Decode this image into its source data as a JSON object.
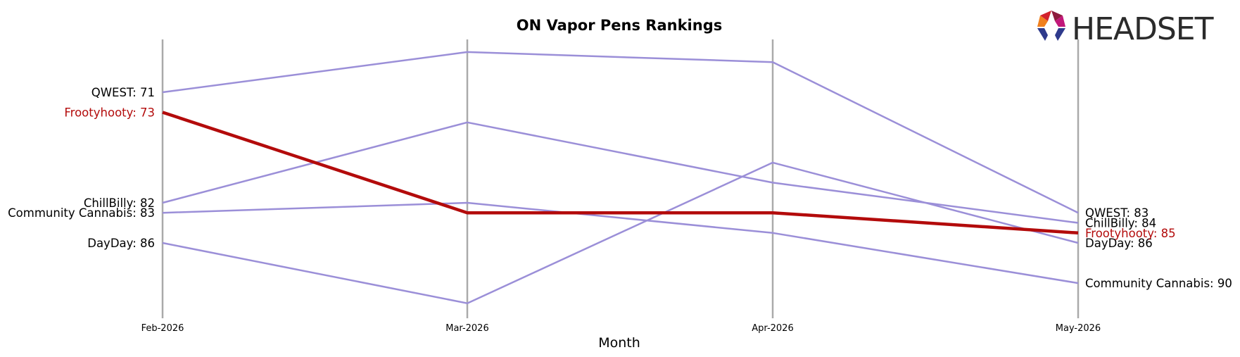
{
  "logo": {
    "text": "HEADSET"
  },
  "chart_data": {
    "type": "line",
    "title": "ON Vapor Pens Rankings",
    "xlabel": "Month",
    "ylabel": "",
    "x": [
      "Feb-2026",
      "Mar-2026",
      "Apr-2026",
      "May-2026"
    ],
    "ylim": [
      95,
      67
    ],
    "y_inverted": true,
    "grid": "vertical lines at each month",
    "series": [
      {
        "name": "QWEST",
        "values": [
          71,
          67,
          68,
          83
        ],
        "color": "#9b8fd8",
        "highlight": false,
        "start_label": "QWEST: 71",
        "end_label": "QWEST: 83"
      },
      {
        "name": "ChillBilly",
        "values": [
          82,
          74,
          80,
          84
        ],
        "color": "#9b8fd8",
        "highlight": false,
        "start_label": "ChillBilly: 82",
        "end_label": "ChillBilly: 84"
      },
      {
        "name": "Community Cannabis",
        "values": [
          83,
          82,
          85,
          90
        ],
        "color": "#9b8fd8",
        "highlight": false,
        "start_label": "Community Cannabis: 83",
        "end_label": "Community Cannabis: 90"
      },
      {
        "name": "DayDay",
        "values": [
          86,
          92,
          78,
          86
        ],
        "color": "#9b8fd8",
        "highlight": false,
        "start_label": "DayDay: 86",
        "end_label": "DayDay: 86"
      },
      {
        "name": "Frootyhooty",
        "values": [
          73,
          83,
          83,
          85
        ],
        "color": "#b30b0b",
        "highlight": true,
        "start_label": "Frootyhooty: 73",
        "end_label": "Frootyhooty: 85"
      }
    ]
  }
}
